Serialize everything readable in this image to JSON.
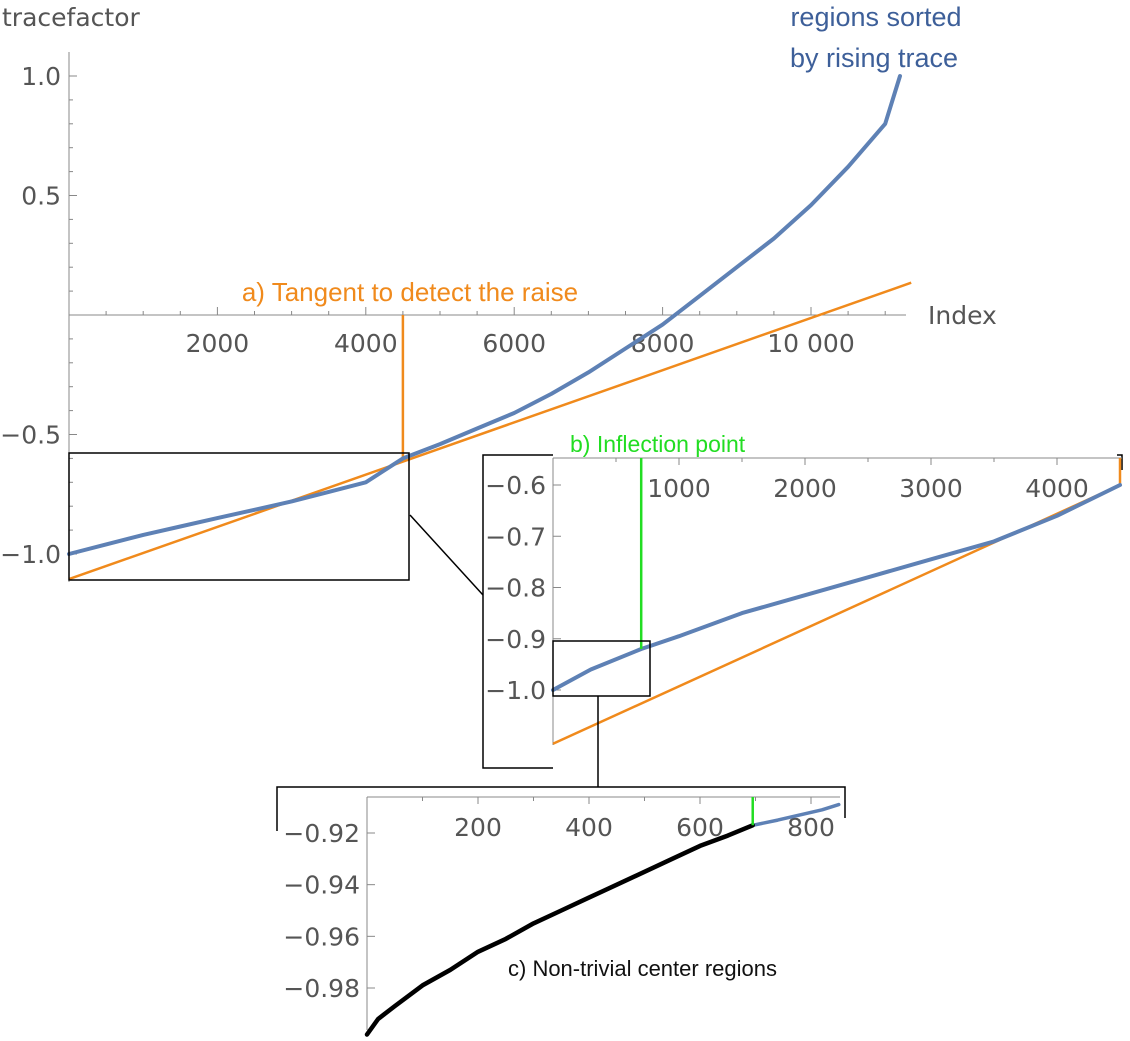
{
  "colors": {
    "series": "#5e81b5",
    "tangent": "#f08a1c",
    "inflection": "#22dd22",
    "center_regions": "#000000",
    "axis": "#888888",
    "text": "#555555",
    "boxes": "#000000"
  },
  "chart_data": [
    {
      "type": "line",
      "xlabel": "Index",
      "ylabel": "tracefactor",
      "xlim": [
        0,
        11300
      ],
      "ylim": [
        -1.1,
        1.05
      ],
      "xticks": [
        2000,
        4000,
        6000,
        8000,
        10000
      ],
      "xtick_labels": [
        "2000",
        "4000",
        "6000",
        "8000",
        "10 000"
      ],
      "yticks": [
        1.0,
        0.5,
        -0.5,
        -1.0
      ],
      "ytick_labels": [
        "1.0",
        "0.5",
        "-0.5",
        "-1.0"
      ],
      "series": [
        {
          "name": "regions sorted by rising trace",
          "x": [
            0,
            500,
            1000,
            1500,
            2000,
            2500,
            3000,
            3500,
            4000,
            4500,
            5000,
            5500,
            6000,
            6500,
            7000,
            7500,
            8000,
            8500,
            9000,
            9500,
            10000,
            10500,
            11000,
            11200
          ],
          "y": [
            -1.0,
            -0.96,
            -0.92,
            -0.885,
            -0.85,
            -0.815,
            -0.78,
            -0.74,
            -0.7,
            -0.6,
            -0.54,
            -0.475,
            -0.41,
            -0.33,
            -0.24,
            -0.14,
            -0.04,
            0.08,
            0.2,
            0.32,
            0.46,
            0.62,
            0.8,
            1.0
          ]
        },
        {
          "name": "Tangent",
          "x": [
            0,
            11350
          ],
          "y": [
            -1.105,
            0.135
          ]
        }
      ],
      "annotations": [
        {
          "text": "regions sorted\nby rising trace"
        },
        {
          "text": "a) Tangent to detect the raise",
          "x": 4500
        }
      ]
    },
    {
      "type": "line",
      "xlim": [
        0,
        4500
      ],
      "ylim": [
        -1.06,
        -0.55
      ],
      "xticks": [
        1000,
        2000,
        3000,
        4000
      ],
      "xtick_labels": [
        "1000",
        "2000",
        "3000",
        "4000"
      ],
      "yticks": [
        -0.6,
        -0.7,
        -0.8,
        -0.9,
        -1.0
      ],
      "ytick_labels": [
        "-0.6",
        "-0.7",
        "-0.8",
        "-0.9",
        "-1.0"
      ],
      "series": [
        {
          "x": [
            0,
            300,
            700,
            1000,
            1500,
            2000,
            2500,
            3000,
            3500,
            4000,
            4500
          ],
          "y": [
            -1.0,
            -0.96,
            -0.92,
            -0.895,
            -0.85,
            -0.815,
            -0.78,
            -0.745,
            -0.71,
            -0.66,
            -0.6
          ]
        },
        {
          "x": [
            0,
            4500
          ],
          "y": [
            -1.105,
            -0.6
          ]
        }
      ],
      "annotations": [
        {
          "text": "b) Inflection point",
          "x": 880
        }
      ]
    },
    {
      "type": "line",
      "xlim": [
        0,
        860
      ],
      "ylim": [
        -0.998,
        -0.907
      ],
      "xticks": [
        200,
        400,
        600,
        800
      ],
      "xtick_labels": [
        "200",
        "400",
        "600",
        "800"
      ],
      "yticks": [
        -0.92,
        -0.94,
        -0.96,
        -0.98
      ],
      "ytick_labels": [
        "-0.92",
        "-0.94",
        "-0.96",
        "-0.98"
      ],
      "series": [
        {
          "name": "c) Non-trivial center regions",
          "x": [
            0,
            20,
            50,
            100,
            150,
            200,
            250,
            300,
            350,
            400,
            450,
            500,
            550,
            600,
            650,
            695
          ],
          "y": [
            -0.998,
            -0.992,
            -0.987,
            -0.979,
            -0.973,
            -0.966,
            -0.961,
            -0.955,
            -0.95,
            -0.945,
            -0.94,
            -0.935,
            -0.93,
            -0.925,
            -0.921,
            -0.917
          ]
        },
        {
          "x": [
            695,
            740,
            780,
            820,
            850
          ],
          "y": [
            -0.917,
            -0.915,
            -0.913,
            -0.911,
            -0.909
          ]
        }
      ],
      "annotations": [
        {
          "text": "c) Non-trivial center regions"
        }
      ]
    }
  ]
}
